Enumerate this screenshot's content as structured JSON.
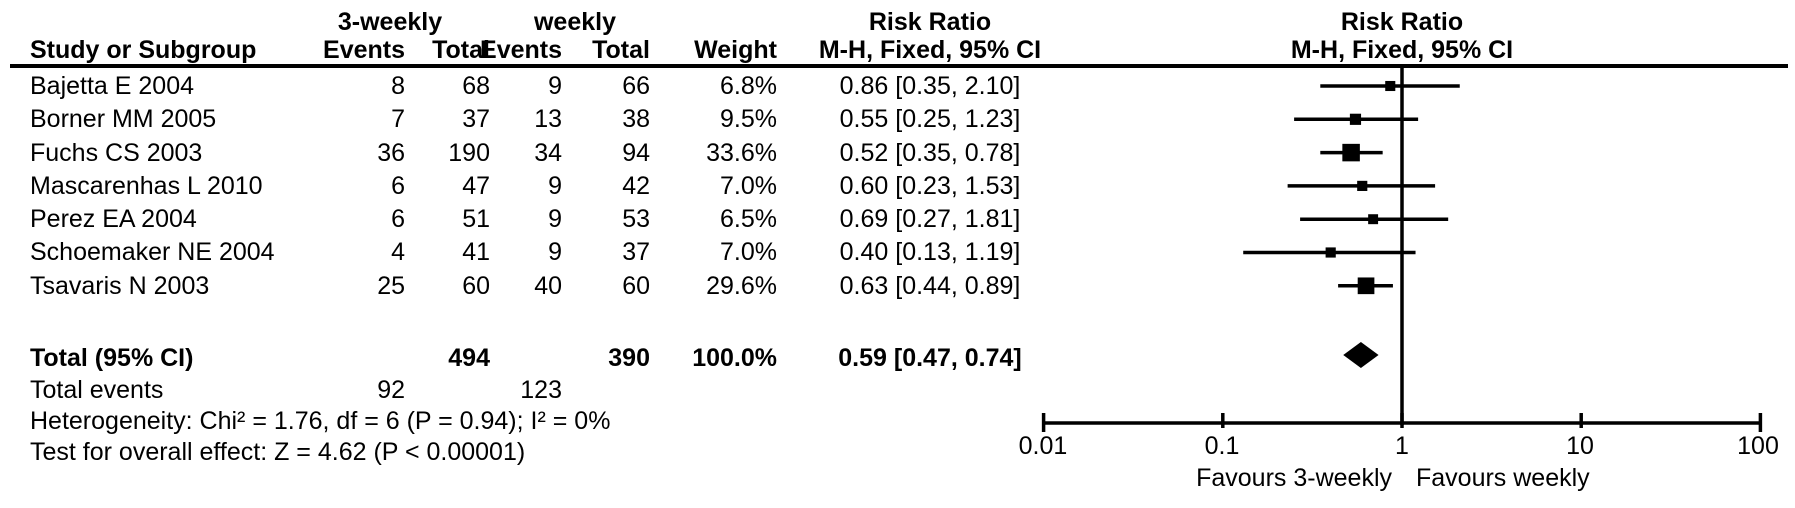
{
  "header": {
    "group1": "3-weekly",
    "group2": "weekly",
    "study_col": "Study or Subgroup",
    "events_col": "Events",
    "total_col": "Total",
    "weight_col": "Weight",
    "effect_title": "Risk Ratio",
    "effect_subtitle": "M-H, Fixed, 95% CI"
  },
  "chart_data": {
    "type": "forest",
    "x_scale": "log10",
    "x_ticks": [
      0.01,
      0.1,
      1,
      10,
      100
    ],
    "x_tick_labels": [
      "0.01",
      "0.1",
      "1",
      "10",
      "100"
    ],
    "xlim": [
      0.01,
      100
    ],
    "null_line": 1,
    "effect_measure": "Risk Ratio",
    "method": "M-H, Fixed, 95% CI",
    "favours_left": "Favours 3-weekly",
    "favours_right": "Favours weekly",
    "marker_color": "#000000",
    "studies": [
      {
        "name": "Bajetta E 2004",
        "events1": "8",
        "total1": "68",
        "events2": "9",
        "total2": "66",
        "weight": "6.8%",
        "weight_pct": 6.8,
        "rr": 0.86,
        "ci_lo": 0.35,
        "ci_hi": 2.1,
        "rr_text": "0.86 [0.35, 2.10]"
      },
      {
        "name": "Borner MM 2005",
        "events1": "7",
        "total1": "37",
        "events2": "13",
        "total2": "38",
        "weight": "9.5%",
        "weight_pct": 9.5,
        "rr": 0.55,
        "ci_lo": 0.25,
        "ci_hi": 1.23,
        "rr_text": "0.55 [0.25, 1.23]"
      },
      {
        "name": "Fuchs CS 2003",
        "events1": "36",
        "total1": "190",
        "events2": "34",
        "total2": "94",
        "weight": "33.6%",
        "weight_pct": 33.6,
        "rr": 0.52,
        "ci_lo": 0.35,
        "ci_hi": 0.78,
        "rr_text": "0.52 [0.35, 0.78]"
      },
      {
        "name": "Mascarenhas L 2010",
        "events1": "6",
        "total1": "47",
        "events2": "9",
        "total2": "42",
        "weight": "7.0%",
        "weight_pct": 7.0,
        "rr": 0.6,
        "ci_lo": 0.23,
        "ci_hi": 1.53,
        "rr_text": "0.60 [0.23, 1.53]"
      },
      {
        "name": "Perez EA 2004",
        "events1": "6",
        "total1": "51",
        "events2": "9",
        "total2": "53",
        "weight": "6.5%",
        "weight_pct": 6.5,
        "rr": 0.69,
        "ci_lo": 0.27,
        "ci_hi": 1.81,
        "rr_text": "0.69 [0.27, 1.81]"
      },
      {
        "name": "Schoemaker NE 2004",
        "events1": "4",
        "total1": "41",
        "events2": "9",
        "total2": "37",
        "weight": "7.0%",
        "weight_pct": 7.0,
        "rr": 0.4,
        "ci_lo": 0.13,
        "ci_hi": 1.19,
        "rr_text": "0.40 [0.13, 1.19]"
      },
      {
        "name": "Tsavaris N 2003",
        "events1": "25",
        "total1": "60",
        "events2": "40",
        "total2": "60",
        "weight": "29.6%",
        "weight_pct": 29.6,
        "rr": 0.63,
        "ci_lo": 0.44,
        "ci_hi": 0.89,
        "rr_text": "0.63 [0.44, 0.89]"
      }
    ],
    "total": {
      "label": "Total (95% CI)",
      "total1": "494",
      "total2": "390",
      "weight": "100.0%",
      "rr": 0.59,
      "ci_lo": 0.47,
      "ci_hi": 0.74,
      "rr_text": "0.59 [0.47, 0.74]"
    },
    "total_events": {
      "label": "Total events",
      "events1": "92",
      "events2": "123"
    },
    "heterogeneity": "Heterogeneity: Chi² = 1.76, df = 6 (P = 0.94); I² = 0%",
    "overall_effect": "Test for overall effect: Z = 4.62 (P < 0.00001)"
  }
}
